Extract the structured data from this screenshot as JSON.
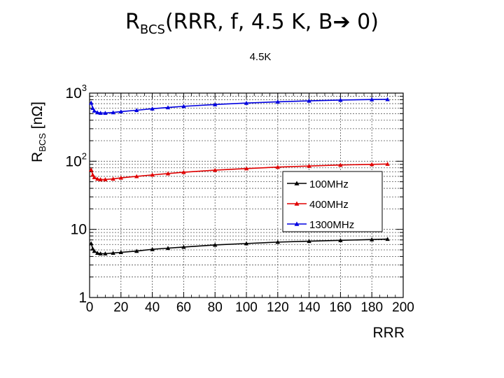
{
  "slide": {
    "title_main": "R",
    "title_sub": "BCS",
    "title_rest": "(RRR, f, 4.5 K, B",
    "title_end": " 0)"
  },
  "chart_data": {
    "type": "line",
    "title": "4.5K",
    "xlabel": "RRR",
    "ylabel_main": "R",
    "ylabel_sub": "BCS",
    "ylabel_unit": " [nΩ]",
    "x_scale": "linear",
    "y_scale": "log",
    "xlim": [
      0,
      200
    ],
    "ylim": [
      1,
      1000
    ],
    "x_ticks": [
      0,
      20,
      40,
      60,
      80,
      100,
      120,
      140,
      160,
      180,
      200
    ],
    "y_ticks": [
      {
        "value": 1,
        "label": "1",
        "exp": ""
      },
      {
        "value": 10,
        "label": "10",
        "exp": ""
      },
      {
        "value": 100,
        "label": "10",
        "exp": "2"
      },
      {
        "value": 1000,
        "label": "10",
        "exp": "3"
      }
    ],
    "grid": true,
    "legend_position": "right-middle",
    "x": [
      1,
      2,
      3,
      5,
      7,
      10,
      15,
      20,
      30,
      40,
      50,
      60,
      80,
      100,
      120,
      140,
      160,
      180,
      190
    ],
    "series": [
      {
        "name": "100MHz",
        "color": "#000000",
        "values": [
          6.2,
          5.2,
          4.8,
          4.5,
          4.4,
          4.4,
          4.5,
          4.6,
          4.8,
          5.1,
          5.3,
          5.5,
          5.9,
          6.2,
          6.5,
          6.7,
          6.9,
          7.1,
          7.2
        ]
      },
      {
        "name": "400MHz",
        "color": "#e00000",
        "values": [
          75,
          63,
          58,
          55,
          54,
          54,
          55,
          57,
          60,
          63,
          66,
          69,
          74,
          78,
          82,
          85,
          88,
          90,
          91
        ]
      },
      {
        "name": "1300MHz",
        "color": "#0000e0",
        "values": [
          720,
          600,
          550,
          520,
          510,
          510,
          520,
          535,
          560,
          590,
          615,
          640,
          680,
          715,
          745,
          770,
          790,
          805,
          810
        ]
      }
    ]
  }
}
